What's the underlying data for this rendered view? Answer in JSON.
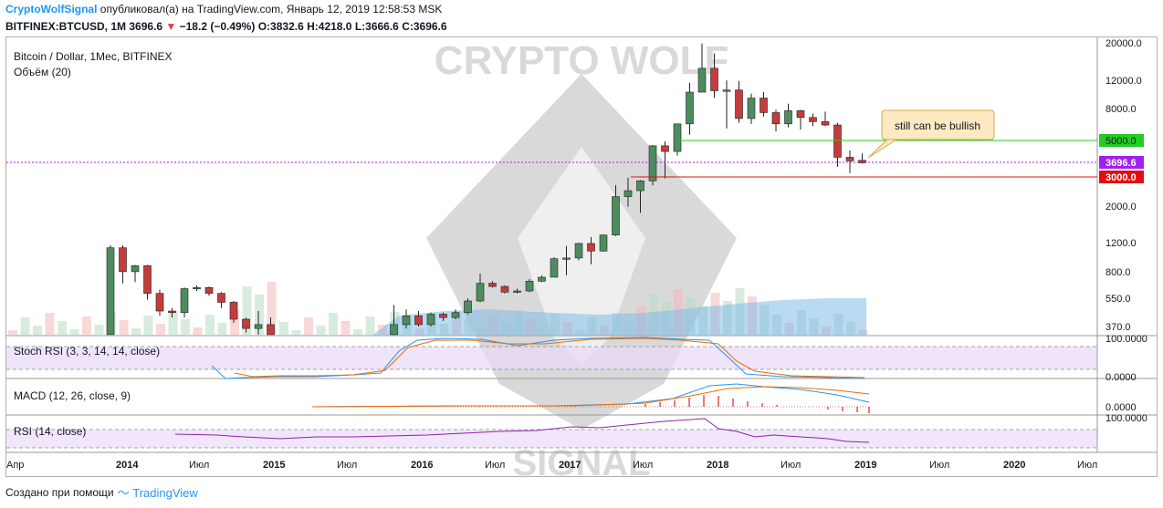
{
  "header": {
    "author": "CryptoWolfSignal",
    "published": "опубликовал(а) на TradingView.com, Январь 12, 2019 12:58:53 MSK"
  },
  "ticker": {
    "symbol": "BITFINEX:BTCUSD, 1M",
    "last": "3696.6",
    "change": "−18.2 (−0.49%)",
    "o_label": "O:",
    "o": "3832.6",
    "h_label": "H:",
    "h": "4218.0",
    "l_label": "L:",
    "l": "3666.6",
    "c_label": "C:",
    "c": "3696.6"
  },
  "legend": {
    "title": "Bitcoin / Dollar, 1Мес, BITFINEX",
    "volume": "Объём (20)"
  },
  "watermark": {
    "line1": "CRYPTO WOLF",
    "line2": "SIGNAL"
  },
  "colors": {
    "up": "#4d8c5f",
    "down": "#c43c3c",
    "support": "#e01010",
    "resistance": "#22cc22",
    "price": "#a020f0"
  },
  "price_axis": [
    "20000.0",
    "12000.0",
    "8000.0",
    "5000.0",
    "3696.6",
    "3000.0",
    "2000.0",
    "1200.0",
    "800.0",
    "550.0",
    "370.0"
  ],
  "time_axis": [
    "Апр",
    "2014",
    "Июл",
    "2015",
    "Июл",
    "2016",
    "Июл",
    "2017",
    "Июл",
    "2018",
    "Июл",
    "2019",
    "Июл",
    "2020",
    "Июл"
  ],
  "levels": {
    "resistance": "5000.0",
    "price": "3696.6",
    "support": "3000.0"
  },
  "note": "still can be bullish",
  "panes": {
    "stoch": {
      "title": "Stoch RSI (3, 3, 14, 14, close)",
      "top": "100.0000",
      "bottom": "0.0000"
    },
    "macd": {
      "title": "MACD (12, 26, close, 9)",
      "zero": "0.0000"
    },
    "rsi": {
      "title": "RSI (14, close)",
      "top": "100.0000"
    }
  },
  "chart_data": {
    "type": "candlestick",
    "scale": "log",
    "ylim": [
      330,
      21000
    ],
    "x_start": "2013-04",
    "candles": [
      {
        "t": "2013-12",
        "o": 300,
        "h": 1160,
        "l": 300,
        "c": 1120
      },
      {
        "t": "2014-01",
        "o": 1120,
        "h": 1160,
        "l": 680,
        "c": 800
      },
      {
        "t": "2014-02",
        "o": 800,
        "h": 880,
        "l": 690,
        "c": 870
      },
      {
        "t": "2014-03",
        "o": 870,
        "h": 880,
        "l": 540,
        "c": 590
      },
      {
        "t": "2014-04",
        "o": 590,
        "h": 620,
        "l": 430,
        "c": 460
      },
      {
        "t": "2014-05",
        "o": 460,
        "h": 480,
        "l": 420,
        "c": 450
      },
      {
        "t": "2014-06",
        "o": 450,
        "h": 640,
        "l": 420,
        "c": 630
      },
      {
        "t": "2014-07",
        "o": 630,
        "h": 660,
        "l": 610,
        "c": 640
      },
      {
        "t": "2014-08",
        "o": 640,
        "h": 650,
        "l": 570,
        "c": 590
      },
      {
        "t": "2014-09",
        "o": 590,
        "h": 600,
        "l": 480,
        "c": 520
      },
      {
        "t": "2014-10",
        "o": 520,
        "h": 530,
        "l": 390,
        "c": 410
      },
      {
        "t": "2014-11",
        "o": 410,
        "h": 420,
        "l": 340,
        "c": 360
      },
      {
        "t": "2014-12",
        "o": 360,
        "h": 460,
        "l": 300,
        "c": 380
      },
      {
        "t": "2015-01",
        "o": 380,
        "h": 420,
        "l": 310,
        "c": 330
      }
    ],
    "candles2": [
      {
        "t": "2015-11",
        "o": 320,
        "h": 500,
        "l": 300,
        "c": 380
      },
      {
        "t": "2015-12",
        "o": 380,
        "h": 470,
        "l": 360,
        "c": 430
      },
      {
        "t": "2016-01",
        "o": 430,
        "h": 460,
        "l": 370,
        "c": 380
      },
      {
        "t": "2016-02",
        "o": 380,
        "h": 450,
        "l": 370,
        "c": 440
      },
      {
        "t": "2016-03",
        "o": 440,
        "h": 450,
        "l": 400,
        "c": 420
      },
      {
        "t": "2016-04",
        "o": 420,
        "h": 470,
        "l": 410,
        "c": 450
      },
      {
        "t": "2016-05",
        "o": 450,
        "h": 550,
        "l": 440,
        "c": 530
      },
      {
        "t": "2016-06",
        "o": 530,
        "h": 780,
        "l": 520,
        "c": 680
      },
      {
        "t": "2016-07",
        "o": 680,
        "h": 700,
        "l": 640,
        "c": 650
      },
      {
        "t": "2016-08",
        "o": 650,
        "h": 660,
        "l": 590,
        "c": 600
      },
      {
        "t": "2016-09",
        "o": 600,
        "h": 630,
        "l": 590,
        "c": 610
      },
      {
        "t": "2016-10",
        "o": 610,
        "h": 720,
        "l": 600,
        "c": 700
      },
      {
        "t": "2016-11",
        "o": 700,
        "h": 760,
        "l": 690,
        "c": 740
      },
      {
        "t": "2016-12",
        "o": 740,
        "h": 980,
        "l": 740,
        "c": 960
      },
      {
        "t": "2017-01",
        "o": 960,
        "h": 1150,
        "l": 760,
        "c": 970
      },
      {
        "t": "2017-02",
        "o": 970,
        "h": 1200,
        "l": 940,
        "c": 1190
      },
      {
        "t": "2017-03",
        "o": 1190,
        "h": 1300,
        "l": 890,
        "c": 1070
      },
      {
        "t": "2017-04",
        "o": 1070,
        "h": 1350,
        "l": 1060,
        "c": 1340
      },
      {
        "t": "2017-05",
        "o": 1340,
        "h": 2700,
        "l": 1320,
        "c": 2300
      },
      {
        "t": "2017-06",
        "o": 2300,
        "h": 3000,
        "l": 2000,
        "c": 2500
      },
      {
        "t": "2017-07",
        "o": 2500,
        "h": 2900,
        "l": 1830,
        "c": 2870
      },
      {
        "t": "2017-08",
        "o": 2870,
        "h": 4750,
        "l": 2700,
        "c": 4700
      },
      {
        "t": "2017-09",
        "o": 4700,
        "h": 5000,
        "l": 2970,
        "c": 4340
      },
      {
        "t": "2017-10",
        "o": 4340,
        "h": 6400,
        "l": 4100,
        "c": 6400
      },
      {
        "t": "2017-11",
        "o": 6400,
        "h": 11400,
        "l": 5500,
        "c": 10000
      },
      {
        "t": "2017-12",
        "o": 10000,
        "h": 19800,
        "l": 10000,
        "c": 14000
      },
      {
        "t": "2018-01",
        "o": 14000,
        "h": 17200,
        "l": 9200,
        "c": 10200
      },
      {
        "t": "2018-02",
        "o": 10200,
        "h": 11800,
        "l": 6000,
        "c": 10300
      },
      {
        "t": "2018-03",
        "o": 10300,
        "h": 11700,
        "l": 6500,
        "c": 6900
      },
      {
        "t": "2018-04",
        "o": 6900,
        "h": 9800,
        "l": 6400,
        "c": 9200
      },
      {
        "t": "2018-05",
        "o": 9200,
        "h": 10000,
        "l": 7100,
        "c": 7500
      },
      {
        "t": "2018-06",
        "o": 7500,
        "h": 7800,
        "l": 5750,
        "c": 6400
      },
      {
        "t": "2018-07",
        "o": 6400,
        "h": 8500,
        "l": 6100,
        "c": 7700
      },
      {
        "t": "2018-08",
        "o": 7700,
        "h": 7800,
        "l": 5900,
        "c": 7000
      },
      {
        "t": "2018-09",
        "o": 7000,
        "h": 7400,
        "l": 6200,
        "c": 6600
      },
      {
        "t": "2018-10",
        "o": 6600,
        "h": 7600,
        "l": 6200,
        "c": 6300
      },
      {
        "t": "2018-11",
        "o": 6300,
        "h": 6500,
        "l": 3500,
        "c": 4000
      },
      {
        "t": "2018-12",
        "o": 4000,
        "h": 4400,
        "l": 3200,
        "c": 3800
      },
      {
        "t": "2019-01",
        "o": 3832.6,
        "h": 4218.0,
        "l": 3666.6,
        "c": 3696.6
      }
    ]
  }
}
